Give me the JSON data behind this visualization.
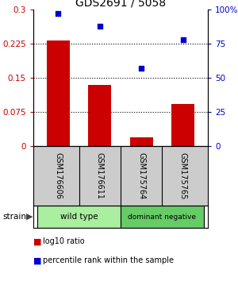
{
  "title": "GDS2691 / 5058",
  "samples": [
    "GSM176606",
    "GSM176611",
    "GSM175764",
    "GSM175765"
  ],
  "log10_ratio": [
    0.232,
    0.135,
    0.02,
    0.092
  ],
  "percentile_rank": [
    97,
    88,
    57,
    78
  ],
  "bar_color": "#cc0000",
  "dot_color": "#0000cc",
  "left_ylim": [
    0,
    0.3
  ],
  "right_ylim": [
    0,
    100
  ],
  "left_yticks": [
    0,
    0.075,
    0.15,
    0.225,
    0.3
  ],
  "left_yticklabels": [
    "0",
    "0.075",
    "0.15",
    "0.225",
    "0.3"
  ],
  "right_yticks": [
    0,
    25,
    50,
    75,
    100
  ],
  "right_yticklabels": [
    "0",
    "25",
    "50",
    "75",
    "100%"
  ],
  "hlines": [
    0.075,
    0.15,
    0.225
  ],
  "strain_groups": [
    {
      "label": "wild type",
      "indices": [
        0,
        1
      ],
      "color": "#aaeea0"
    },
    {
      "label": "dominant negative",
      "indices": [
        2,
        3
      ],
      "color": "#66cc66"
    }
  ],
  "legend_ratio_label": "log10 ratio",
  "legend_percentile_label": "percentile rank within the sample",
  "strain_label": "strain",
  "gray_box_color": "#cccccc",
  "bar_width": 0.55
}
